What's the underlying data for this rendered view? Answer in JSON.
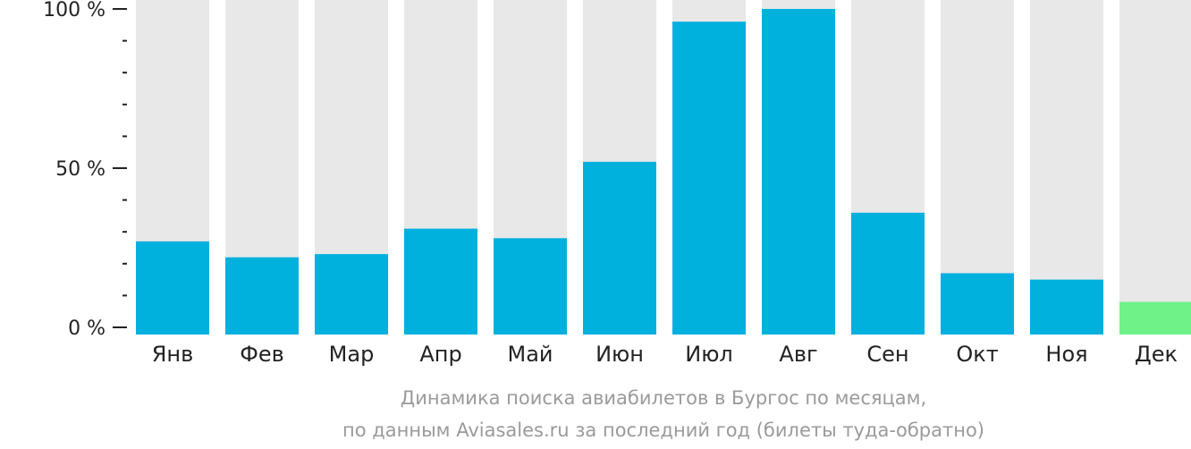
{
  "chart_data": {
    "type": "bar",
    "categories": [
      "Янв",
      "Фев",
      "Мар",
      "Апр",
      "Май",
      "Июн",
      "Июл",
      "Авг",
      "Сен",
      "Окт",
      "Ноя",
      "Дек"
    ],
    "values": [
      27,
      22,
      23,
      31,
      28,
      52,
      96,
      100,
      36,
      17,
      15,
      8
    ],
    "highlight_index": 11,
    "ylim": [
      0,
      100
    ],
    "y_ticks": [
      {
        "value": 0,
        "label": "0 %"
      },
      {
        "value": 50,
        "label": "50 %"
      },
      {
        "value": 100,
        "label": "100 %"
      }
    ],
    "minor_tick_step": 10,
    "caption_line1": "Динамика поиска авиабилетов в Бургос по месяцам,",
    "caption_line2": "по данным Aviasales.ru за последний год (билеты туда-обратно)",
    "colors": {
      "bar": "#00b0dd",
      "highlight": "#6ff288",
      "background_bar": "#e8e8e8",
      "axis": "#222222",
      "caption": "#9a9a9a"
    }
  }
}
